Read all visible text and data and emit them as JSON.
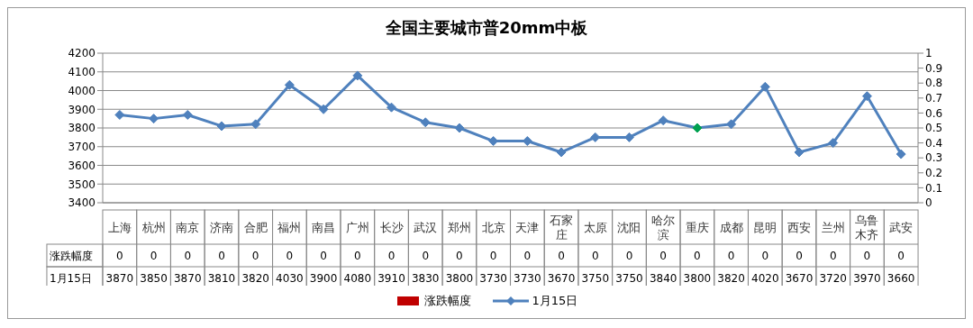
{
  "chart_data": {
    "type": "line",
    "title": "全国主要城市普20mm中板",
    "categories": [
      "上海",
      "杭州",
      "南京",
      "济南",
      "合肥",
      "福州",
      "南昌",
      "广州",
      "长沙",
      "武汉",
      "郑州",
      "北京",
      "天津",
      "石家庄",
      "太原",
      "沈阳",
      "哈尔滨",
      "重庆",
      "成都",
      "昆明",
      "西安",
      "兰州",
      "乌鲁木齐",
      "武安"
    ],
    "series": [
      {
        "name": "涨跌幅度",
        "type": "bar",
        "axis": "y2",
        "color": "#c00000",
        "values": [
          0,
          0,
          0,
          0,
          0,
          0,
          0,
          0,
          0,
          0,
          0,
          0,
          0,
          0,
          0,
          0,
          0,
          0,
          0,
          0,
          0,
          0,
          0,
          0
        ]
      },
      {
        "name": "1月15日",
        "color": "#4f81bd",
        "colors": [
          "#4f81bd",
          "#4f81bd",
          "#4f81bd",
          "#4f81bd",
          "#4f81bd",
          "#4f81bd",
          "#4f81bd",
          "#4f81bd",
          "#4f81bd",
          "#4f81bd",
          "#4f81bd",
          "#4f81bd",
          "#4f81bd",
          "#4f81bd",
          "#4f81bd",
          "#4f81bd",
          "#4f81bd",
          "#00a050",
          "#4f81bd",
          "#4f81bd",
          "#4f81bd",
          "#4f81bd",
          "#4f81bd",
          "#4f81bd"
        ],
        "values": [
          3870,
          3850,
          3870,
          3810,
          3820,
          4030,
          3900,
          4080,
          3910,
          3830,
          3800,
          3730,
          3730,
          3670,
          3750,
          3750,
          3840,
          3800,
          3820,
          4020,
          3670,
          3720,
          3970,
          3660
        ]
      }
    ],
    "ylim": [
      3400,
      4200
    ],
    "yticks": [
      3400,
      3500,
      3600,
      3700,
      3800,
      3900,
      4000,
      4100,
      4200
    ],
    "y2lim": [
      0,
      1
    ],
    "y2ticks": [
      0,
      0.1,
      0.2,
      0.3,
      0.4,
      0.5,
      0.6,
      0.7,
      0.8,
      0.9,
      1
    ],
    "grid": "y",
    "legend": "bottom",
    "marker": "diamond",
    "line_style": "solid",
    "data_labels": true
  }
}
